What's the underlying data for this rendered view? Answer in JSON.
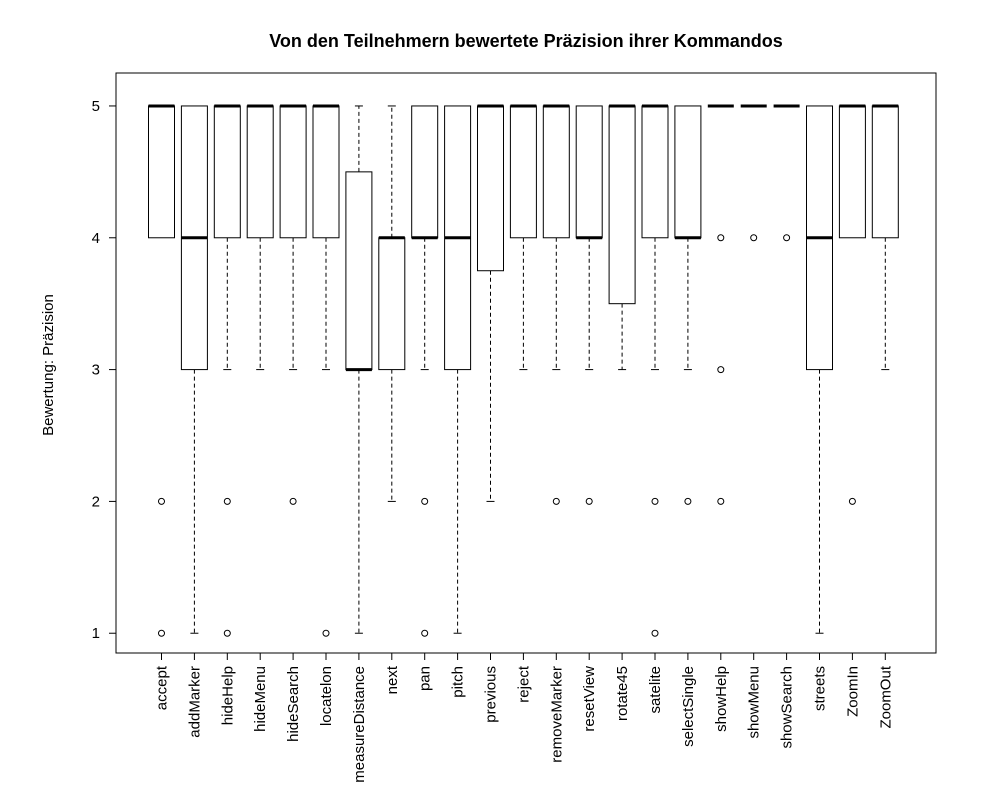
{
  "chart_data": {
    "type": "boxplot",
    "title": "Von den Teilnehmern bewertete Präzision ihrer Kommandos",
    "xlabel": "",
    "ylabel": "Bewertung: Präzision",
    "ylim": [
      0.85,
      5.25
    ],
    "yticks": [
      1,
      2,
      3,
      4,
      5
    ],
    "grid": false,
    "categories": [
      "accept",
      "addMarker",
      "hideHelp",
      "hideMenu",
      "hideSearch",
      "locatelon",
      "measureDistance",
      "next",
      "pan",
      "pitch",
      "previous",
      "reject",
      "removeMarker",
      "resetView",
      "rotate45",
      "satelite",
      "selectSingle",
      "showHelp",
      "showMenu",
      "showSearch",
      "streets",
      "ZoomIn",
      "ZoomOut"
    ],
    "boxes": [
      {
        "q1": 4,
        "median": 5,
        "q3": 5,
        "whisker_low": 4,
        "whisker_high": 5,
        "outliers": [
          2,
          1
        ]
      },
      {
        "q1": 3,
        "median": 4,
        "q3": 5,
        "whisker_low": 1,
        "whisker_high": 5,
        "outliers": []
      },
      {
        "q1": 4,
        "median": 5,
        "q3": 5,
        "whisker_low": 3,
        "whisker_high": 5,
        "outliers": [
          2,
          1
        ]
      },
      {
        "q1": 4,
        "median": 5,
        "q3": 5,
        "whisker_low": 3,
        "whisker_high": 5,
        "outliers": []
      },
      {
        "q1": 4,
        "median": 5,
        "q3": 5,
        "whisker_low": 3,
        "whisker_high": 5,
        "outliers": [
          2
        ]
      },
      {
        "q1": 4,
        "median": 5,
        "q3": 5,
        "whisker_low": 3,
        "whisker_high": 5,
        "outliers": [
          1
        ]
      },
      {
        "q1": 3,
        "median": 3,
        "q3": 4.5,
        "whisker_low": 1,
        "whisker_high": 5,
        "outliers": []
      },
      {
        "q1": 3,
        "median": 4,
        "q3": 4,
        "whisker_low": 2,
        "whisker_high": 5,
        "outliers": []
      },
      {
        "q1": 4,
        "median": 4,
        "q3": 5,
        "whisker_low": 3,
        "whisker_high": 5,
        "outliers": [
          2,
          1
        ]
      },
      {
        "q1": 3,
        "median": 4,
        "q3": 5,
        "whisker_low": 1,
        "whisker_high": 5,
        "outliers": []
      },
      {
        "q1": 3.75,
        "median": 5,
        "q3": 5,
        "whisker_low": 2,
        "whisker_high": 5,
        "outliers": []
      },
      {
        "q1": 4,
        "median": 5,
        "q3": 5,
        "whisker_low": 3,
        "whisker_high": 5,
        "outliers": []
      },
      {
        "q1": 4,
        "median": 5,
        "q3": 5,
        "whisker_low": 3,
        "whisker_high": 5,
        "outliers": [
          2
        ]
      },
      {
        "q1": 4,
        "median": 4,
        "q3": 5,
        "whisker_low": 3,
        "whisker_high": 5,
        "outliers": [
          2
        ]
      },
      {
        "q1": 3.5,
        "median": 5,
        "q3": 5,
        "whisker_low": 3,
        "whisker_high": 5,
        "outliers": []
      },
      {
        "q1": 4,
        "median": 5,
        "q3": 5,
        "whisker_low": 3,
        "whisker_high": 5,
        "outliers": [
          2,
          1
        ]
      },
      {
        "q1": 4,
        "median": 4,
        "q3": 5,
        "whisker_low": 3,
        "whisker_high": 5,
        "outliers": [
          2
        ]
      },
      {
        "q1": 5,
        "median": 5,
        "q3": 5,
        "whisker_low": 5,
        "whisker_high": 5,
        "outliers": [
          4,
          3,
          2
        ]
      },
      {
        "q1": 5,
        "median": 5,
        "q3": 5,
        "whisker_low": 5,
        "whisker_high": 5,
        "outliers": [
          4
        ]
      },
      {
        "q1": 5,
        "median": 5,
        "q3": 5,
        "whisker_low": 5,
        "whisker_high": 5,
        "outliers": [
          4
        ]
      },
      {
        "q1": 3,
        "median": 4,
        "q3": 5,
        "whisker_low": 1,
        "whisker_high": 5,
        "outliers": []
      },
      {
        "q1": 4,
        "median": 5,
        "q3": 5,
        "whisker_low": 4,
        "whisker_high": 5,
        "outliers": [
          2
        ]
      },
      {
        "q1": 4,
        "median": 5,
        "q3": 5,
        "whisker_low": 3,
        "whisker_high": 5,
        "outliers": []
      }
    ]
  }
}
